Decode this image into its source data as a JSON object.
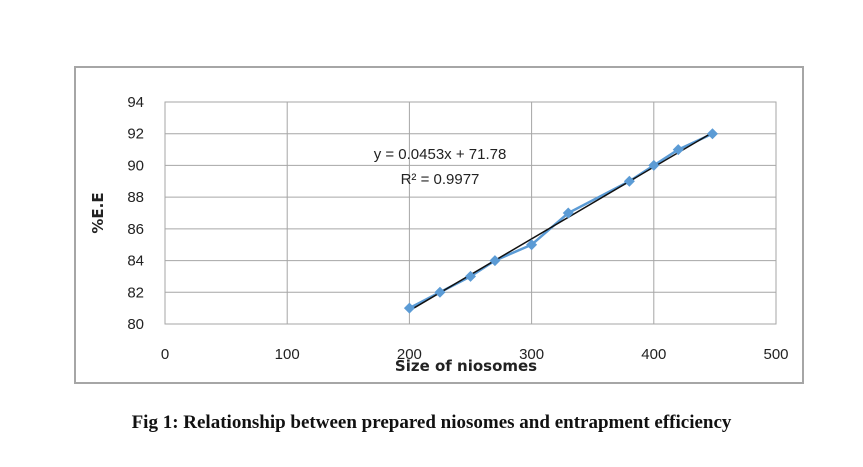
{
  "caption": "Fig 1: Relationship between prepared niosomes and entrapment efficiency",
  "chart_data": {
    "type": "scatter",
    "xlabel": "Size of niosomes",
    "ylabel": "%E.E",
    "xlim": [
      0,
      500
    ],
    "ylim": [
      80,
      94
    ],
    "xticks": [
      0,
      100,
      200,
      300,
      400,
      500
    ],
    "yticks": [
      80,
      82,
      84,
      86,
      88,
      90,
      92,
      94
    ],
    "grid": true,
    "points": [
      {
        "x": 200,
        "y": 81
      },
      {
        "x": 225,
        "y": 82
      },
      {
        "x": 250,
        "y": 83
      },
      {
        "x": 270,
        "y": 84
      },
      {
        "x": 300,
        "y": 85
      },
      {
        "x": 330,
        "y": 87
      },
      {
        "x": 380,
        "y": 89
      },
      {
        "x": 400,
        "y": 90
      },
      {
        "x": 420,
        "y": 91
      },
      {
        "x": 448,
        "y": 92
      }
    ],
    "trendline": {
      "slope": 0.0453,
      "intercept": 71.78,
      "x_range": [
        200,
        448
      ],
      "equation_label": "y = 0.0453x + 71.78",
      "r2_label": "R² = 0.9977"
    },
    "colors": {
      "marker": "#5b9bd5",
      "series_line": "#5b9bd5",
      "trendline": "#111111",
      "grid": "#a6a6a6"
    }
  }
}
